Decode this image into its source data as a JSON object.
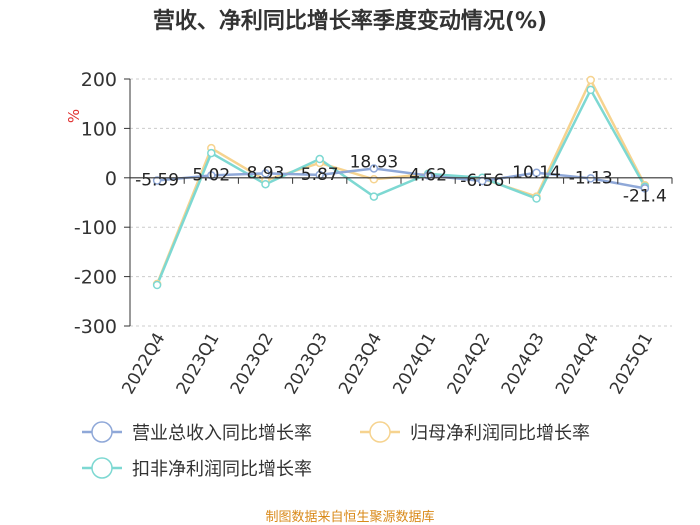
{
  "chart_data": {
    "type": "line",
    "title": "营收、净利同比增长率季度变动情况(%)",
    "ylabel": "%",
    "categories": [
      "2022Q4",
      "2023Q1",
      "2023Q2",
      "2023Q3",
      "2023Q4",
      "2024Q1",
      "2024Q2",
      "2024Q3",
      "2024Q4",
      "2025Q1"
    ],
    "ylim": [
      -300,
      200
    ],
    "yticks": [
      200,
      100,
      0,
      -100,
      -200,
      -300
    ],
    "series": [
      {
        "name": "营业总收入同比增长率",
        "color": "#8fa8d8",
        "values": [
          -5.59,
          5.02,
          8.93,
          5.87,
          18.93,
          4.62,
          -6.56,
          10.14,
          -1.13,
          -21.4
        ]
      },
      {
        "name": "归母净利润同比增长率",
        "color": "#f6d38f",
        "values": [
          -215,
          60,
          -5,
          30,
          -3,
          8,
          -2,
          -38,
          198,
          -15
        ]
      },
      {
        "name": "扣非净利润同比增长率",
        "color": "#7dd8d2",
        "values": [
          -217,
          50,
          -13,
          38,
          -38,
          8,
          0,
          -42,
          178,
          -18
        ]
      }
    ],
    "data_labels": [
      "-5.59",
      "5.02",
      "8.93",
      "5.87",
      "18.93",
      "4.62",
      "-6.56",
      "10.14",
      "-1.13",
      "-21.4"
    ],
    "legend_placement": "bottom"
  },
  "source": "制图数据来自恒生聚源数据库"
}
